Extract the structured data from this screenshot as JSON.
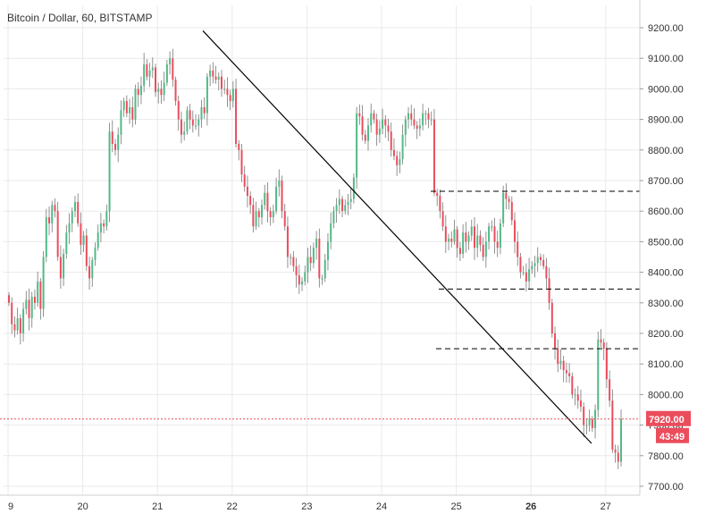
{
  "chart_data": {
    "type": "candlestick",
    "title": "Bitcoin / Dollar, 60, BITSTAMP",
    "ylim": [
      7660,
      9285
    ],
    "y_ticks": [
      9200,
      9100,
      9000,
      8900,
      8800,
      8700,
      8600,
      8500,
      8400,
      8300,
      8200,
      8100,
      8000,
      7900,
      7800,
      7700
    ],
    "y_tick_labels": [
      "9200.00",
      "9100.00",
      "9000.00",
      "8900.00",
      "8800.00",
      "8700.00",
      "8600.00",
      "8500.00",
      "8400.00",
      "8300.00",
      "8200.00",
      "8100.00",
      "8000.00",
      "7900.00",
      "7800.00",
      "7700.00"
    ],
    "x_ticks": [
      {
        "label": "9",
        "day": 19,
        "bold": false
      },
      {
        "label": "20",
        "day": 20,
        "bold": false
      },
      {
        "label": "21",
        "day": 21,
        "bold": false
      },
      {
        "label": "22",
        "day": 22,
        "bold": false
      },
      {
        "label": "23",
        "day": 23,
        "bold": false
      },
      {
        "label": "24",
        "day": 24,
        "bold": false
      },
      {
        "label": "25",
        "day": 25,
        "bold": false
      },
      {
        "label": "26",
        "day": 26,
        "bold": true
      },
      {
        "label": "27",
        "day": 27,
        "bold": false
      }
    ],
    "xlim_days": [
      18.98,
      27.46
    ],
    "last_price": 7920,
    "last_price_label": "7920.00",
    "countdown_label": "43:49",
    "colors": {
      "up": "#53b987",
      "down": "#eb4d5c",
      "wick": "#777777",
      "trendline": "#000000",
      "support": "#000000",
      "price_line": "#eb4d5c",
      "badge": "#eb4d5c",
      "grid": "#e9e9e9"
    },
    "closes": [
      8300,
      8230,
      8210,
      8250,
      8200,
      8280,
      8310,
      8250,
      8320,
      8300,
      8370,
      8280,
      8450,
      8580,
      8560,
      8620,
      8600,
      8450,
      8380,
      8460,
      8530,
      8560,
      8600,
      8630,
      8560,
      8490,
      8520,
      8420,
      8380,
      8440,
      8480,
      8530,
      8560,
      8550,
      8600,
      8860,
      8820,
      8800,
      8850,
      8930,
      8960,
      8920,
      8940,
      8900,
      9000,
      8980,
      9010,
      9080,
      9040,
      9060,
      9070,
      8990,
      9000,
      8980,
      9020,
      9080,
      9100,
      9030,
      8960,
      8900,
      8850,
      8860,
      8930,
      8900,
      8880,
      8880,
      8900,
      8940,
      8920,
      9040,
      9060,
      9040,
      9030,
      9040,
      9000,
      9000,
      8980,
      8960,
      9000,
      8820,
      8800,
      8720,
      8680,
      8650,
      8620,
      8550,
      8600,
      8580,
      8620,
      8660,
      8600,
      8580,
      8600,
      8680,
      8700,
      8600,
      8550,
      8450,
      8450,
      8420,
      8390,
      8360,
      8370,
      8400,
      8450,
      8430,
      8480,
      8510,
      8380,
      8380,
      8440,
      8500,
      8560,
      8600,
      8620,
      8640,
      8600,
      8620,
      8630,
      8640,
      8710,
      8920,
      8910,
      8850,
      8830,
      8880,
      8920,
      8900,
      8850,
      8870,
      8900,
      8880,
      8860,
      8800,
      8780,
      8750,
      8770,
      8850,
      8900,
      8920,
      8900,
      8880,
      8870,
      8880,
      8920,
      8920,
      8900,
      8900,
      8660,
      8650,
      8600,
      8550,
      8500,
      8510,
      8500,
      8540,
      8480,
      8460,
      8530,
      8500,
      8520,
      8550,
      8480,
      8520,
      8490,
      8450,
      8500,
      8550,
      8550,
      8500,
      8480,
      8560,
      8660,
      8640,
      8630,
      8570,
      8500,
      8450,
      8400,
      8400,
      8370,
      8410,
      8420,
      8430,
      8450,
      8440,
      8420,
      8380,
      8300,
      8200,
      8150,
      8100,
      8110,
      8080,
      8070,
      8060,
      8000,
      8000,
      7980,
      7960,
      7900,
      7900,
      7920,
      7890,
      7950,
      8180,
      8170,
      8150,
      8050,
      7980,
      7820,
      7810,
      7780,
      7920
    ]
  }
}
